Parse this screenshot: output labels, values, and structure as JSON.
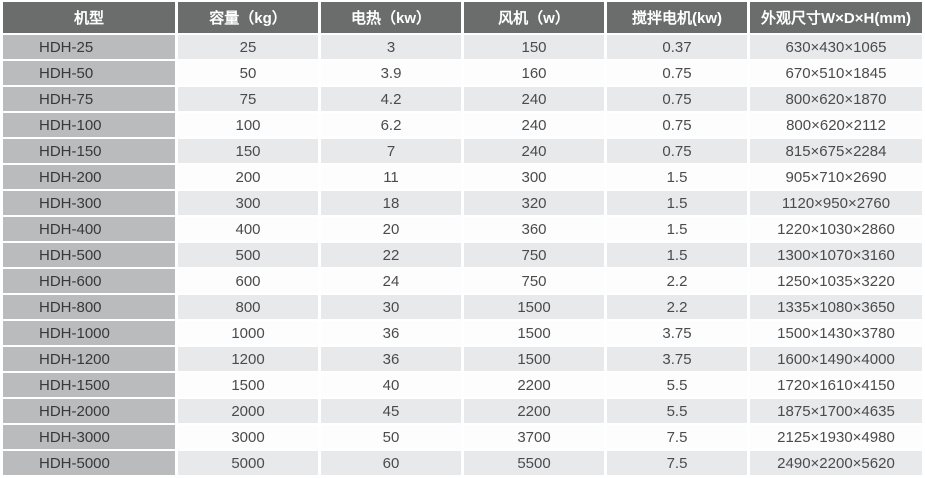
{
  "chart_data": {
    "type": "table",
    "columns": [
      "机型",
      "容量（kg）",
      "电热（kw）",
      "风机（w）",
      "搅拌电机(kw)",
      "外观尺寸W×D×H(mm)"
    ],
    "rows": [
      [
        "HDH-25",
        "25",
        "3",
        "150",
        "0.37",
        "630×430×1065"
      ],
      [
        "HDH-50",
        "50",
        "3.9",
        "160",
        "0.75",
        "670×510×1845"
      ],
      [
        "HDH-75",
        "75",
        "4.2",
        "240",
        "0.75",
        "800×620×1870"
      ],
      [
        "HDH-100",
        "100",
        "6.2",
        "240",
        "0.75",
        "800×620×2112"
      ],
      [
        "HDH-150",
        "150",
        "7",
        "240",
        "0.75",
        "815×675×2284"
      ],
      [
        "HDH-200",
        "200",
        "11",
        "300",
        "1.5",
        "905×710×2690"
      ],
      [
        "HDH-300",
        "300",
        "18",
        "320",
        "1.5",
        "1120×950×2760"
      ],
      [
        "HDH-400",
        "400",
        "20",
        "360",
        "1.5",
        "1220×1030×2860"
      ],
      [
        "HDH-500",
        "500",
        "22",
        "750",
        "1.5",
        "1300×1070×3160"
      ],
      [
        "HDH-600",
        "600",
        "24",
        "750",
        "2.2",
        "1250×1035×3220"
      ],
      [
        "HDH-800",
        "800",
        "30",
        "1500",
        "2.2",
        "1335×1080×3650"
      ],
      [
        "HDH-1000",
        "1000",
        "36",
        "1500",
        "3.75",
        "1500×1430×3780"
      ],
      [
        "HDH-1200",
        "1200",
        "36",
        "1500",
        "3.75",
        "1600×1490×4000"
      ],
      [
        "HDH-1500",
        "1500",
        "40",
        "2200",
        "5.5",
        "1720×1610×4150"
      ],
      [
        "HDH-2000",
        "2000",
        "45",
        "2200",
        "5.5",
        "1875×1700×4635"
      ],
      [
        "HDH-3000",
        "3000",
        "50",
        "3700",
        "7.5",
        "2125×1930×4980"
      ],
      [
        "HDH-5000",
        "5000",
        "60",
        "5500",
        "7.5",
        "2490×2200×5620"
      ]
    ]
  },
  "colors": {
    "header_bg": "#6b6c6c",
    "header_text": "#ffffff",
    "model_col_bg": "#b9bbbd",
    "model_text": "#37383a",
    "row_odd_bg": "#e8e9ea",
    "row_even_bg": "#fdfdfd",
    "cell_text": "#4a4b4c",
    "gap": "#ffffff"
  }
}
